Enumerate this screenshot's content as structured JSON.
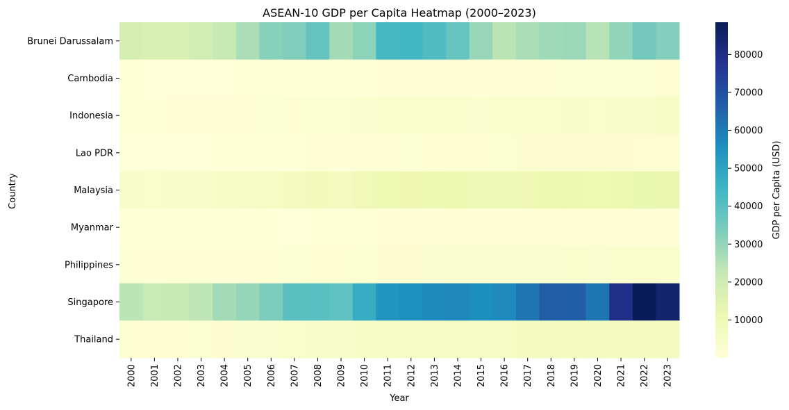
{
  "chart_data": {
    "type": "heatmap",
    "title": "ASEAN-10 GDP per Capita Heatmap (2000–2023)",
    "xlabel": "Year",
    "ylabel": "Country",
    "colorbar_label": "GDP per Capita (USD)",
    "colormap": "YlGnBu",
    "color_range": [
      0,
      88500
    ],
    "colorbar_ticks": [
      10000,
      20000,
      30000,
      40000,
      50000,
      60000,
      70000,
      80000
    ],
    "colorbar_tick_labels": [
      "10000",
      "20000",
      "30000",
      "40000",
      "50000",
      "60000",
      "70000",
      "80000"
    ],
    "x": [
      "2000",
      "2001",
      "2002",
      "2003",
      "2004",
      "2005",
      "2006",
      "2007",
      "2008",
      "2009",
      "2010",
      "2011",
      "2012",
      "2013",
      "2014",
      "2015",
      "2016",
      "2017",
      "2018",
      "2019",
      "2020",
      "2021",
      "2022",
      "2023"
    ],
    "y": [
      "Brunei Darussalam",
      "Cambodia",
      "Indonesia",
      "Lao PDR",
      "Malaysia",
      "Myanmar",
      "Philippines",
      "Singapore",
      "Thailand"
    ],
    "values": [
      [
        18000,
        17000,
        17500,
        19000,
        22000,
        26500,
        32000,
        33000,
        38000,
        27500,
        31000,
        43500,
        44000,
        41500,
        37500,
        29500,
        24000,
        26500,
        28500,
        29000,
        24500,
        30500,
        35500,
        32500
      ],
      [
        300,
        320,
        340,
        360,
        400,
        460,
        520,
        600,
        700,
        720,
        780,
        880,
        950,
        1000,
        1080,
        1160,
        1270,
        1380,
        1500,
        1640,
        1580,
        1620,
        1760,
        1880
      ],
      [
        780,
        750,
        900,
        1060,
        1150,
        1260,
        1590,
        1860,
        2170,
        2260,
        3120,
        3640,
        3690,
        3620,
        3490,
        3330,
        3560,
        3840,
        3890,
        4130,
        3900,
        4330,
        4790,
        4940
      ],
      [
        320,
        320,
        310,
        360,
        420,
        470,
        590,
        710,
        900,
        940,
        1140,
        1380,
        1580,
        1830,
        2000,
        2140,
        2310,
        2420,
        2540,
        2620,
        2630,
        2550,
        2050,
        2070
      ],
      [
        4040,
        3900,
        4170,
        4460,
        4950,
        5590,
        6210,
        7240,
        8470,
        7290,
        9040,
        10250,
        10650,
        10880,
        11180,
        9700,
        9550,
        9950,
        11070,
        11130,
        10160,
        11110,
        11990,
        11650
      ],
      [
        200,
        200,
        200,
        220,
        230,
        250,
        280,
        360,
        480,
        560,
        750,
        1100,
        1180,
        1180,
        1200,
        1170,
        1230,
        1220,
        1300,
        1290,
        1480,
        1210,
        1150,
        1230
      ],
      [
        1040,
        960,
        1000,
        1010,
        1080,
        1210,
        1450,
        1770,
        2000,
        1900,
        2220,
        2460,
        2690,
        2870,
        2960,
        3000,
        3040,
        3080,
        3250,
        3490,
        3220,
        3460,
        3500,
        3730
      ],
      [
        23850,
        21700,
        22160,
        23730,
        27610,
        29870,
        33770,
        39430,
        40010,
        38930,
        47240,
        53890,
        55550,
        56970,
        57560,
        55650,
        56830,
        61150,
        66680,
        66070,
        61270,
        79430,
        88430,
        84730
      ],
      [
        2010,
        1890,
        2100,
        2360,
        2660,
        2890,
        3350,
        3970,
        4380,
        4210,
        5080,
        5490,
        5860,
        6170,
        5950,
        5850,
        6000,
        6600,
        7300,
        7630,
        7000,
        7060,
        6910,
        7180
      ]
    ]
  }
}
